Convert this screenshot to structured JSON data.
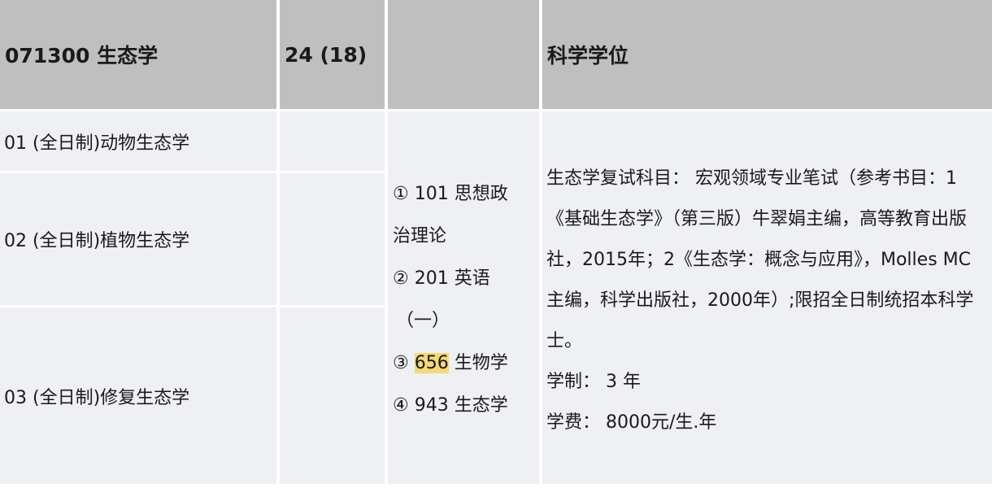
{
  "header": {
    "major": "071300 生态学",
    "quota": "24 (18)",
    "exam": "",
    "degree": "科学学位"
  },
  "directions": [
    {
      "label": "01 (全日制)动物生态学"
    },
    {
      "label": "02 (全日制)植物生态学"
    },
    {
      "label": "03 (全日制)修复生态学"
    }
  ],
  "exam_subjects": {
    "line1": "① 101 思想政",
    "line2": "治理论",
    "line3": "② 201 英语",
    "line4": "（一）",
    "item3_prefix": "③ ",
    "item3_code": "656",
    "item3_name": " 生物学",
    "line6": "④ 943 生态学",
    "highlight_color": "#f6d77a"
  },
  "notes": {
    "retest": "生态学复试科目： 宏观领域专业笔试（参考书目：1《基础生态学》（第三版）牛翠娟主编，高等教育出版社，2015年；2《生态学：概念与应用》，Molles MC主编，科学出版社，2000年）;限招全日制统招本科学士。",
    "duration": "学制： 3 年",
    "tuition": "学费： 8000元/生.年"
  },
  "colors": {
    "header_bg": "#bfbfbf",
    "body_bg": "#eef0f3"
  }
}
